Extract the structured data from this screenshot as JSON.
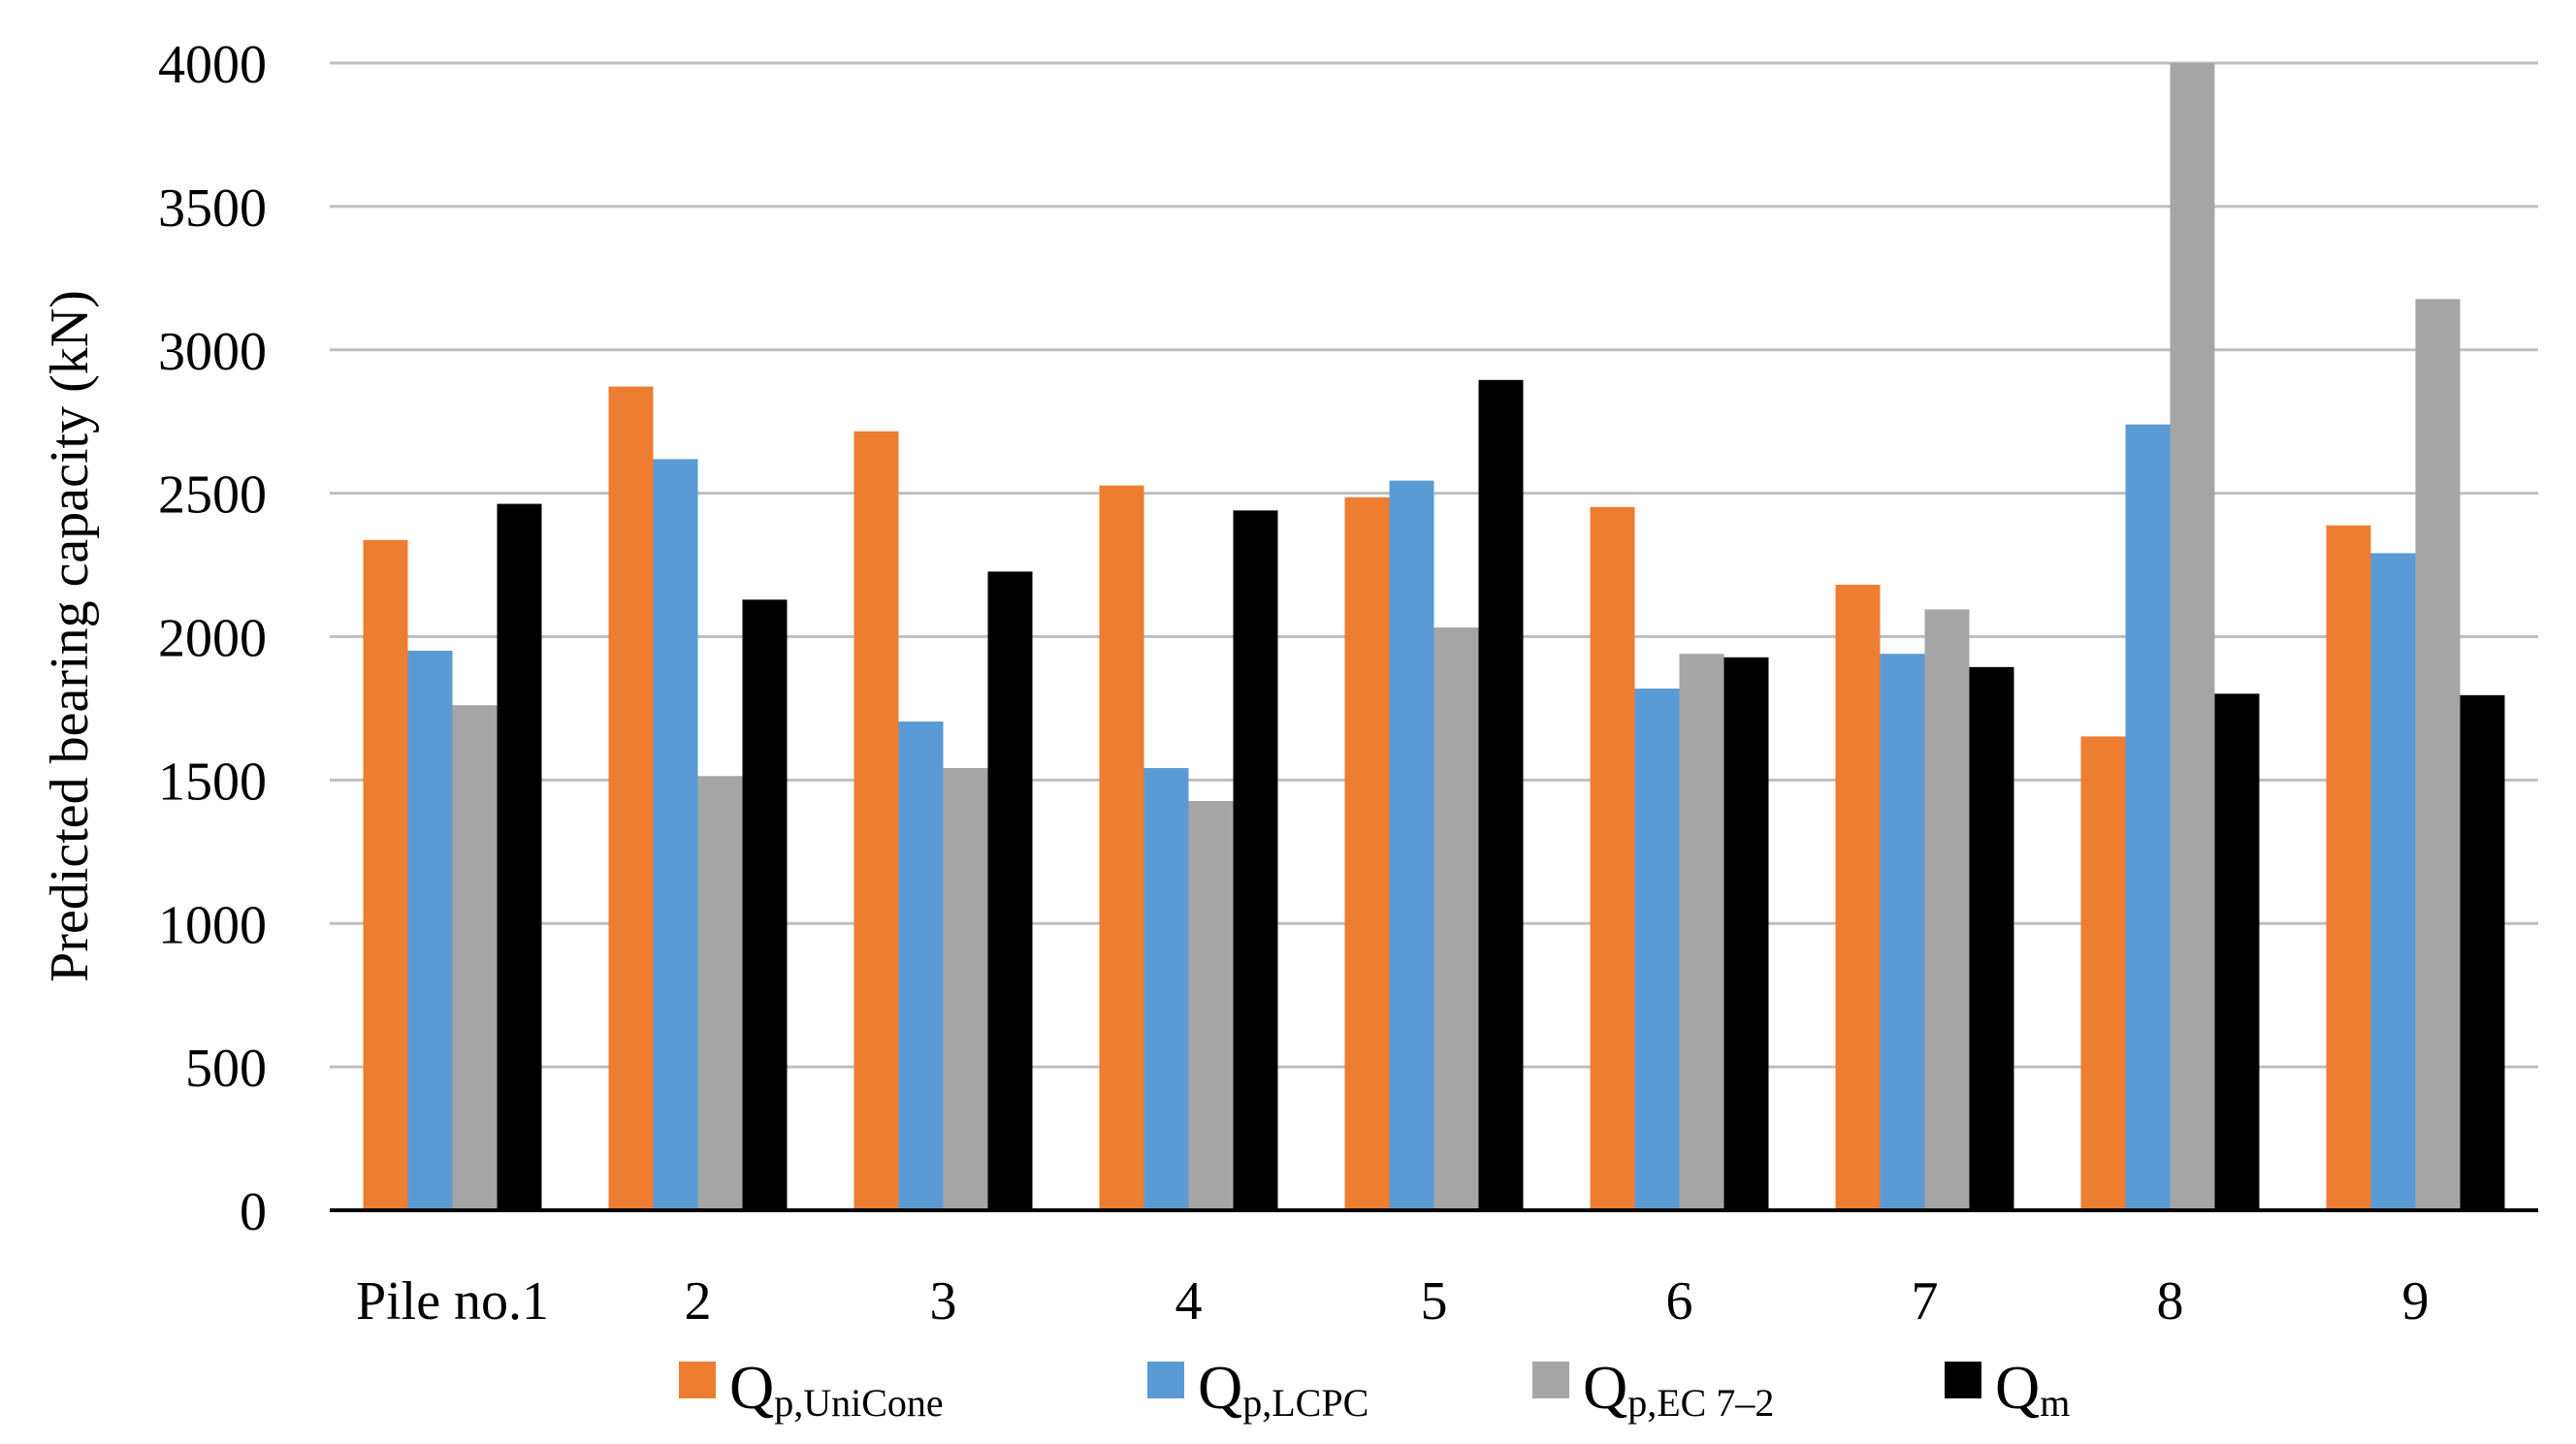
{
  "chart_data": {
    "type": "bar",
    "title": "",
    "xlabel": "",
    "ylabel": "Predicted bearing capacity (kN)",
    "ylim": [
      0,
      4000
    ],
    "yticks": [
      0,
      500,
      1000,
      1500,
      2000,
      2500,
      3000,
      3500,
      4000
    ],
    "grid": true,
    "legend_position": "bottom",
    "categories": [
      "Pile no.1",
      "2",
      "3",
      "4",
      "5",
      "6",
      "7",
      "8",
      "9"
    ],
    "series": [
      {
        "name": "Qp,UniCone",
        "main": "Q",
        "sub": "p,UniCone",
        "color": "#ED7D31",
        "values": [
          2337,
          2872,
          2716,
          2527,
          2486,
          2452,
          2181,
          1652,
          2388
        ]
      },
      {
        "name": "Qp,LCPC",
        "main": "Q",
        "sub": "p,LCPC",
        "color": "#5B9BD5",
        "values": [
          1951,
          2619,
          1704,
          1542,
          2544,
          1819,
          1940,
          2740,
          2291
        ]
      },
      {
        "name": "Qp,EC 7–2",
        "main": "Q",
        "sub": "p,EC 7–2",
        "color": "#A5A5A5",
        "values": [
          1761,
          1514,
          1542,
          1427,
          2032,
          1940,
          2095,
          4000,
          3177
        ]
      },
      {
        "name": "Qm",
        "main": "Q",
        "sub": "m",
        "color": "#000000",
        "values": [
          2463,
          2129,
          2227,
          2440,
          2895,
          1928,
          1894,
          1801,
          1796
        ]
      }
    ]
  }
}
